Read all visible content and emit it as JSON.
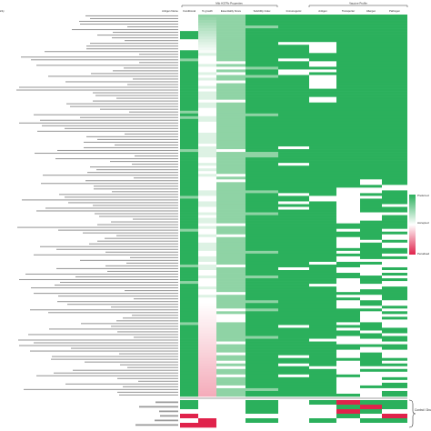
{
  "chart_data": {
    "type": "heatmap",
    "title": "",
    "xlabel": "",
    "ylabel": "",
    "columns": [
      "Antigen Name",
      "Conditional",
      "% growth",
      "Essentiality Score",
      "Solubility Index",
      "Immunogenic",
      "Antigen",
      "Transporter",
      "Allergen",
      "Pathogen",
      "Toxicity"
    ],
    "column_group_labels": [
      "Mtb H37Rv Properties",
      "Vaccine Profile"
    ],
    "legend": {
      "labels": [
        "Preferred",
        "Accepted",
        "Penalised"
      ],
      "placement": "right",
      "colors": {
        "high": "#2bb05c",
        "mid": "#ffffff",
        "low": "#e0224b"
      }
    },
    "bracket_label": "Control / Drug Reference",
    "row_count_main": 139,
    "row_count_control": 6,
    "colors": {
      "green": "#2bb05c",
      "green_light": "#8fd3a5",
      "white": "#ffffff",
      "red": "#e0224b"
    },
    "main_region_summary": {
      "Conditional": "mostly green, near-white band near the top",
      "% growth": "green-to-white gradient, fading to pink toward the bottom",
      "Essentiality Score": "light green with scattered white cells",
      "Solubility Index": "mostly green",
      "Immunogenic": "mostly green with some white cells",
      "Antigen": "green with white blocks in the upper section",
      "Transporter": "green top half, mostly white lower half",
      "Allergen": "green top half, white blocks in the lower half",
      "Pathogen": "green top half, white blocks in the lower half",
      "Toxicity": "green top half, mixed white lower half"
    }
  }
}
